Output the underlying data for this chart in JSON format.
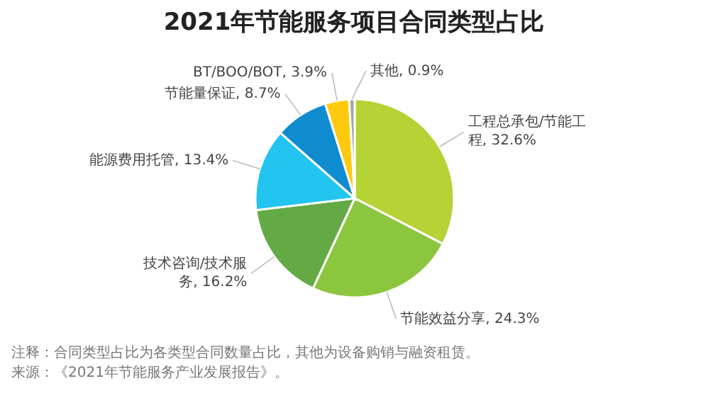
{
  "chart_data": {
    "type": "pie",
    "title": "2021年节能服务项目合同类型占比",
    "categories": [
      "工程总承包/节能工程",
      "节能效益分享",
      "技术咨询/技术服务",
      "能源费用托管",
      "节能量保证",
      "BT/BOO/BOT",
      "其他"
    ],
    "values": [
      32.6,
      24.3,
      16.2,
      13.4,
      8.7,
      3.9,
      0.9
    ],
    "value_labels": [
      "32.6%",
      "24.3%",
      "16.2%",
      "13.4%",
      "8.7%",
      "3.9%",
      "0.9%"
    ],
    "colors": [
      "#b5d334",
      "#8cc63f",
      "#63aa45",
      "#22c4f0",
      "#0f8ccf",
      "#ffc90e",
      "#a6a6a6"
    ],
    "legend": false,
    "annotations": [
      "注释：合同类型占比为各类型合同数量占比，其他为设备购销与融资租赁。",
      "来源：《2021年节能服务产业发展报告》。"
    ]
  }
}
